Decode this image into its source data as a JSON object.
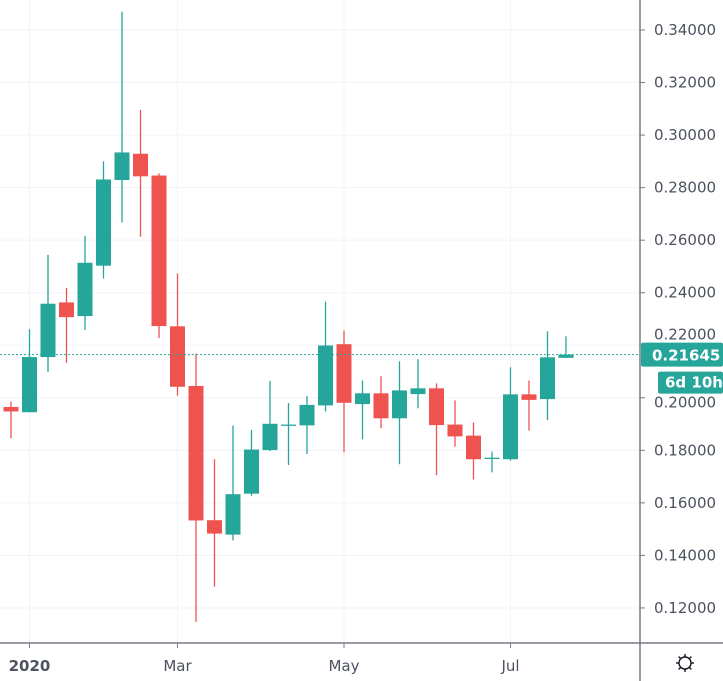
{
  "chart_data": {
    "type": "candlestick",
    "interval": "weekly",
    "colors": {
      "up": "#26a69a",
      "down": "#ef5350",
      "grid": "#f0f3fa",
      "axis": "#787b86"
    },
    "ylim": [
      0.108,
      0.351
    ],
    "y_ticks": [
      "0.12000",
      "0.14000",
      "0.16000",
      "0.18000",
      "0.20000",
      "0.22000",
      "0.24000",
      "0.26000",
      "0.28000",
      "0.30000",
      "0.32000",
      "0.34000"
    ],
    "x_ticks": [
      {
        "label": "2020",
        "date": "2020-01-06"
      },
      {
        "label": "Mar",
        "date": "2020-03-02"
      },
      {
        "label": "May",
        "date": "2020-05-04"
      },
      {
        "label": "Jul",
        "date": "2020-07-06"
      }
    ],
    "grid": true,
    "last_price": {
      "value": 0.21645,
      "label": "0.21645",
      "countdown": "6d 10h"
    },
    "candles": [
      {
        "date": "2019-12-30",
        "o": 0.1965,
        "h": 0.1985,
        "l": 0.1846,
        "c": 0.1948
      },
      {
        "date": "2020-01-06",
        "o": 0.1945,
        "h": 0.2261,
        "l": 0.1945,
        "c": 0.2155
      },
      {
        "date": "2020-01-13",
        "o": 0.2155,
        "h": 0.2544,
        "l": 0.2099,
        "c": 0.2358
      },
      {
        "date": "2020-01-20",
        "o": 0.2363,
        "h": 0.2418,
        "l": 0.2133,
        "c": 0.2307
      },
      {
        "date": "2020-01-27",
        "o": 0.2311,
        "h": 0.2616,
        "l": 0.2258,
        "c": 0.2514
      },
      {
        "date": "2020-02-03",
        "o": 0.2503,
        "h": 0.29,
        "l": 0.2454,
        "c": 0.2831
      },
      {
        "date": "2020-02-10",
        "o": 0.2829,
        "h": 0.347,
        "l": 0.2667,
        "c": 0.2934
      },
      {
        "date": "2020-02-17",
        "o": 0.2929,
        "h": 0.3096,
        "l": 0.2613,
        "c": 0.2843
      },
      {
        "date": "2020-02-24",
        "o": 0.2846,
        "h": 0.2854,
        "l": 0.2227,
        "c": 0.2273
      },
      {
        "date": "2020-03-02",
        "o": 0.2272,
        "h": 0.2473,
        "l": 0.2008,
        "c": 0.2042
      },
      {
        "date": "2020-03-09",
        "o": 0.2045,
        "h": 0.2168,
        "l": 0.1147,
        "c": 0.1533
      },
      {
        "date": "2020-03-16",
        "o": 0.1534,
        "h": 0.1766,
        "l": 0.1281,
        "c": 0.1483
      },
      {
        "date": "2020-03-23",
        "o": 0.1479,
        "h": 0.1894,
        "l": 0.1457,
        "c": 0.1633
      },
      {
        "date": "2020-03-30",
        "o": 0.1635,
        "h": 0.1878,
        "l": 0.1627,
        "c": 0.1803
      },
      {
        "date": "2020-04-06",
        "o": 0.1801,
        "h": 0.2064,
        "l": 0.1797,
        "c": 0.1901
      },
      {
        "date": "2020-04-13",
        "o": 0.1896,
        "h": 0.198,
        "l": 0.1744,
        "c": 0.1898
      },
      {
        "date": "2020-04-20",
        "o": 0.1895,
        "h": 0.2006,
        "l": 0.1786,
        "c": 0.1973
      },
      {
        "date": "2020-04-27",
        "o": 0.1971,
        "h": 0.2366,
        "l": 0.1948,
        "c": 0.2199
      },
      {
        "date": "2020-05-04",
        "o": 0.2204,
        "h": 0.2256,
        "l": 0.1793,
        "c": 0.1981
      },
      {
        "date": "2020-05-11",
        "o": 0.1976,
        "h": 0.2066,
        "l": 0.1842,
        "c": 0.2017
      },
      {
        "date": "2020-05-18",
        "o": 0.2017,
        "h": 0.2082,
        "l": 0.1884,
        "c": 0.1922
      },
      {
        "date": "2020-05-25",
        "o": 0.1922,
        "h": 0.2139,
        "l": 0.1747,
        "c": 0.2028
      },
      {
        "date": "2020-06-01",
        "o": 0.2014,
        "h": 0.2147,
        "l": 0.196,
        "c": 0.2036
      },
      {
        "date": "2020-06-08",
        "o": 0.2036,
        "h": 0.2055,
        "l": 0.1705,
        "c": 0.1896
      },
      {
        "date": "2020-06-15",
        "o": 0.1898,
        "h": 0.199,
        "l": 0.1814,
        "c": 0.1853
      },
      {
        "date": "2020-06-22",
        "o": 0.1856,
        "h": 0.1906,
        "l": 0.1689,
        "c": 0.1766
      },
      {
        "date": "2020-06-29",
        "o": 0.1768,
        "h": 0.1795,
        "l": 0.1716,
        "c": 0.1772
      },
      {
        "date": "2020-07-06",
        "o": 0.1766,
        "h": 0.2116,
        "l": 0.1761,
        "c": 0.2013
      },
      {
        "date": "2020-07-13",
        "o": 0.2013,
        "h": 0.2066,
        "l": 0.1875,
        "c": 0.1992
      },
      {
        "date": "2020-07-20",
        "o": 0.1995,
        "h": 0.2253,
        "l": 0.1915,
        "c": 0.2154
      },
      {
        "date": "2020-07-27",
        "o": 0.2152,
        "h": 0.2234,
        "l": 0.2152,
        "c": 0.21645
      }
    ]
  },
  "settings": {
    "icon": "gear-icon"
  }
}
